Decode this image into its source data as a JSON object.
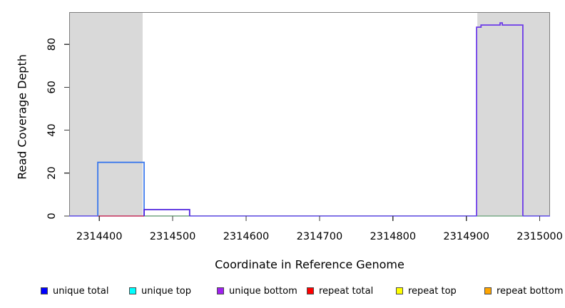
{
  "figure": {
    "x_axis_label": "Coordinate in Reference Genome",
    "y_axis_label": "Read Coverage Depth"
  },
  "chart_data": {
    "type": "line",
    "subtype": "step-coverage",
    "title": "",
    "xlabel": "Coordinate in Reference Genome",
    "ylabel": "Read Coverage Depth",
    "xlim": [
      2314359,
      2315014
    ],
    "ylim": [
      0,
      95
    ],
    "x_ticks": [
      2314400,
      2314500,
      2314600,
      2314700,
      2314800,
      2314900,
      2315000
    ],
    "y_ticks": [
      0,
      20,
      40,
      60,
      80
    ],
    "grid": false,
    "plot_bg": "#ffffff",
    "frame_color": "#7e7e7e",
    "tick_color": "#3a3a3a",
    "band_color": "#d9d9d9",
    "repeat_region_bands": [
      {
        "x0": 2314359,
        "x1": 2314459
      },
      {
        "x0": 2314915,
        "x1": 2315014
      }
    ],
    "series": [
      {
        "name": "unique baseline depth 0",
        "color": "#6f5bf5",
        "width": 1.6,
        "points": [
          [
            2314359,
            0
          ],
          [
            2315014,
            0
          ]
        ]
      },
      {
        "name": "repeat total zero segment",
        "color": "#e04f5f",
        "width": 1.6,
        "points": [
          [
            2314398,
            0
          ],
          [
            2314461,
            0
          ]
        ]
      },
      {
        "name": "strand zero segment mid",
        "color": "#96cc8e",
        "width": 1.6,
        "points": [
          [
            2314461,
            0
          ],
          [
            2314523,
            0
          ]
        ]
      },
      {
        "name": "strand zero segment right",
        "color": "#96cc8e",
        "width": 1.6,
        "points": [
          [
            2314914,
            0
          ],
          [
            2314977,
            0
          ]
        ]
      },
      {
        "name": "unique coverage block depth 25",
        "color": "#3c79ec",
        "width": 1.8,
        "points": [
          [
            2314398,
            0
          ],
          [
            2314398,
            25
          ],
          [
            2314461,
            25
          ],
          [
            2314461,
            0
          ]
        ]
      },
      {
        "name": "unique coverage block depth 3",
        "color": "#4e23de",
        "width": 1.8,
        "points": [
          [
            2314461,
            0
          ],
          [
            2314461,
            3
          ],
          [
            2314523,
            3
          ],
          [
            2314523,
            0
          ]
        ]
      },
      {
        "name": "unique coverage block depth 89",
        "color": "#6c3ae8",
        "width": 1.8,
        "points": [
          [
            2314914,
            0
          ],
          [
            2314914,
            88
          ],
          [
            2314920,
            88
          ],
          [
            2314920,
            89
          ],
          [
            2314946,
            89
          ],
          [
            2314946,
            90
          ],
          [
            2314949,
            90
          ],
          [
            2314949,
            89
          ],
          [
            2314977,
            89
          ],
          [
            2314977,
            0
          ]
        ]
      }
    ],
    "legend_position": "bottom",
    "legend": [
      {
        "label": "unique total",
        "color": "#0000ff"
      },
      {
        "label": "unique top",
        "color": "#00ffff"
      },
      {
        "label": "unique bottom",
        "color": "#a020f0"
      },
      {
        "label": "repeat total",
        "color": "#ff0000"
      },
      {
        "label": "repeat top",
        "color": "#ffff00"
      },
      {
        "label": "repeat bottom",
        "color": "#ffa500"
      }
    ]
  }
}
